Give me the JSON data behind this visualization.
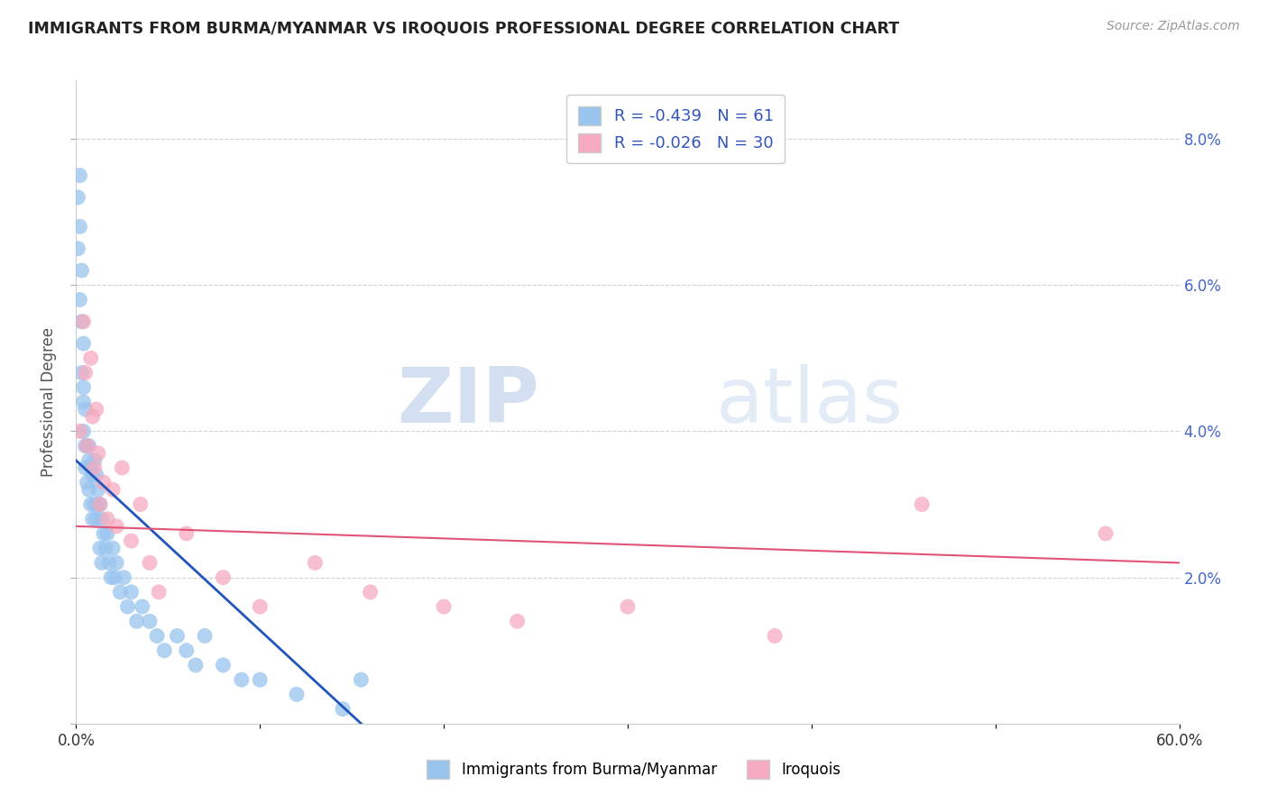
{
  "title": "IMMIGRANTS FROM BURMA/MYANMAR VS IROQUOIS PROFESSIONAL DEGREE CORRELATION CHART",
  "source": "Source: ZipAtlas.com",
  "ylabel": "Professional Degree",
  "xlim": [
    0.0,
    0.6
  ],
  "ylim": [
    0.0,
    0.088
  ],
  "yticks": [
    0.0,
    0.02,
    0.04,
    0.06,
    0.08
  ],
  "yticklabels_right": [
    "",
    "2.0%",
    "4.0%",
    "6.0%",
    "8.0%"
  ],
  "blue_R": -0.439,
  "blue_N": 61,
  "pink_R": -0.026,
  "pink_N": 30,
  "legend_label_blue": "Immigrants from Burma/Myanmar",
  "legend_label_pink": "Iroquois",
  "blue_color": "#99C4EE",
  "pink_color": "#F5AABF",
  "blue_line_color": "#2255BB",
  "pink_line_color": "#E05575",
  "title_color": "#222222",
  "watermark_zip": "ZIP",
  "watermark_atlas": "atlas",
  "background_color": "#FFFFFF",
  "blue_x": [
    0.001,
    0.001,
    0.002,
    0.002,
    0.002,
    0.003,
    0.003,
    0.003,
    0.004,
    0.004,
    0.004,
    0.004,
    0.005,
    0.005,
    0.005,
    0.006,
    0.006,
    0.007,
    0.007,
    0.007,
    0.008,
    0.008,
    0.009,
    0.009,
    0.01,
    0.01,
    0.011,
    0.011,
    0.012,
    0.012,
    0.013,
    0.013,
    0.014,
    0.014,
    0.015,
    0.016,
    0.017,
    0.018,
    0.019,
    0.02,
    0.021,
    0.022,
    0.024,
    0.026,
    0.028,
    0.03,
    0.033,
    0.036,
    0.04,
    0.044,
    0.048,
    0.055,
    0.06,
    0.065,
    0.07,
    0.08,
    0.09,
    0.1,
    0.12,
    0.145,
    0.155
  ],
  "blue_y": [
    0.072,
    0.065,
    0.075,
    0.068,
    0.058,
    0.062,
    0.055,
    0.048,
    0.052,
    0.046,
    0.044,
    0.04,
    0.043,
    0.038,
    0.035,
    0.038,
    0.033,
    0.036,
    0.032,
    0.038,
    0.03,
    0.035,
    0.034,
    0.028,
    0.03,
    0.036,
    0.034,
    0.028,
    0.03,
    0.032,
    0.03,
    0.024,
    0.028,
    0.022,
    0.026,
    0.024,
    0.026,
    0.022,
    0.02,
    0.024,
    0.02,
    0.022,
    0.018,
    0.02,
    0.016,
    0.018,
    0.014,
    0.016,
    0.014,
    0.012,
    0.01,
    0.012,
    0.01,
    0.008,
    0.012,
    0.008,
    0.006,
    0.006,
    0.004,
    0.002,
    0.006
  ],
  "pink_x": [
    0.002,
    0.004,
    0.005,
    0.006,
    0.008,
    0.009,
    0.01,
    0.011,
    0.012,
    0.013,
    0.015,
    0.017,
    0.02,
    0.022,
    0.025,
    0.03,
    0.035,
    0.04,
    0.045,
    0.06,
    0.08,
    0.1,
    0.13,
    0.16,
    0.2,
    0.24,
    0.3,
    0.38,
    0.46,
    0.56
  ],
  "pink_y": [
    0.04,
    0.055,
    0.048,
    0.038,
    0.05,
    0.042,
    0.035,
    0.043,
    0.037,
    0.03,
    0.033,
    0.028,
    0.032,
    0.027,
    0.035,
    0.025,
    0.03,
    0.022,
    0.018,
    0.026,
    0.02,
    0.016,
    0.022,
    0.018,
    0.016,
    0.014,
    0.016,
    0.012,
    0.03,
    0.026
  ],
  "blue_line_x0": 0.0,
  "blue_line_y0": 0.036,
  "blue_line_x1": 0.155,
  "blue_line_y1": 0.0,
  "pink_line_x0": 0.0,
  "pink_line_y0": 0.027,
  "pink_line_x1": 0.6,
  "pink_line_y1": 0.022
}
